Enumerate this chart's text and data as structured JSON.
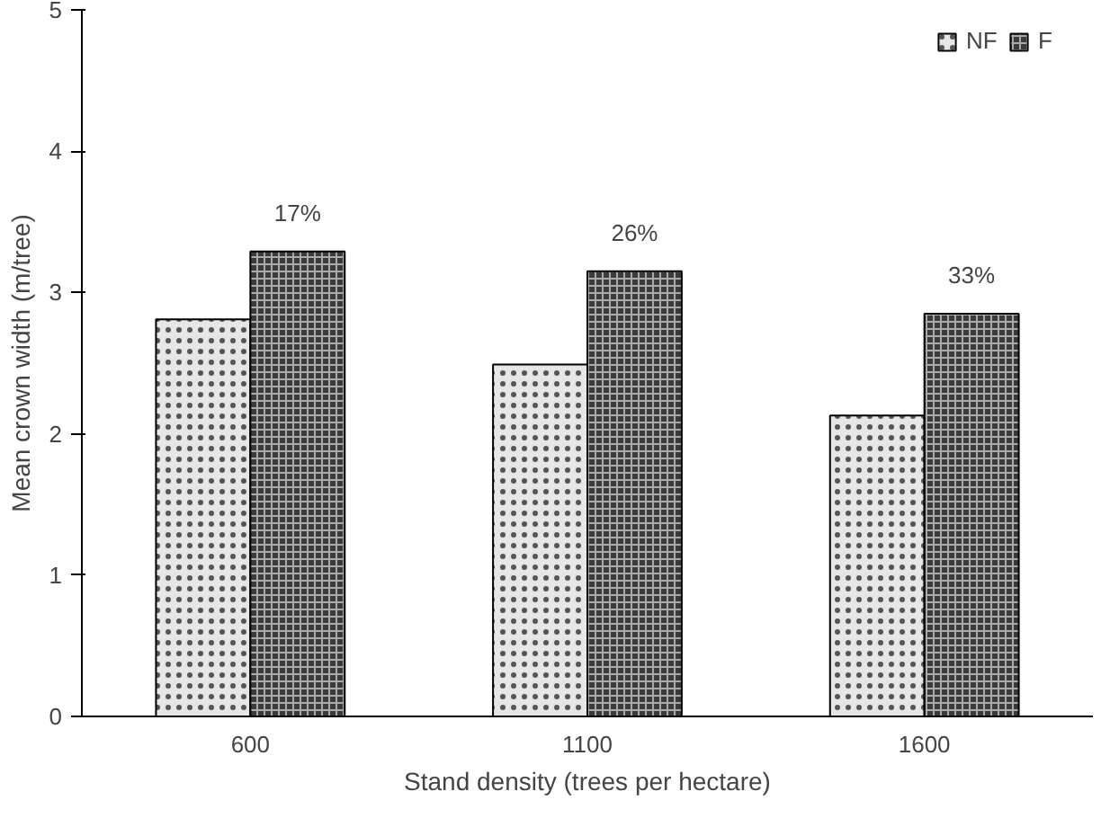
{
  "chart_data": {
    "type": "bar",
    "xlabel": "Stand density (trees per hectare)",
    "ylabel": "Mean crown width (m/tree)",
    "categories": [
      "600",
      "1100",
      "1600"
    ],
    "series": [
      {
        "name": "NF",
        "color": "#e6e6e6",
        "values": [
          2.81,
          2.49,
          2.13
        ]
      },
      {
        "name": "F",
        "color": "#3a3a3a",
        "values": [
          3.29,
          3.15,
          2.85
        ]
      }
    ],
    "ylim": [
      0,
      5
    ],
    "yticks": [
      0,
      1,
      2,
      3,
      4,
      5
    ],
    "grid": false,
    "legend": "top right",
    "annotations": [
      {
        "text": "17%",
        "x": "600",
        "y": 3.29
      },
      {
        "text": "26%",
        "x": "1100",
        "y": 3.15
      },
      {
        "text": "33%",
        "x": "1600",
        "y": 2.85
      }
    ]
  }
}
